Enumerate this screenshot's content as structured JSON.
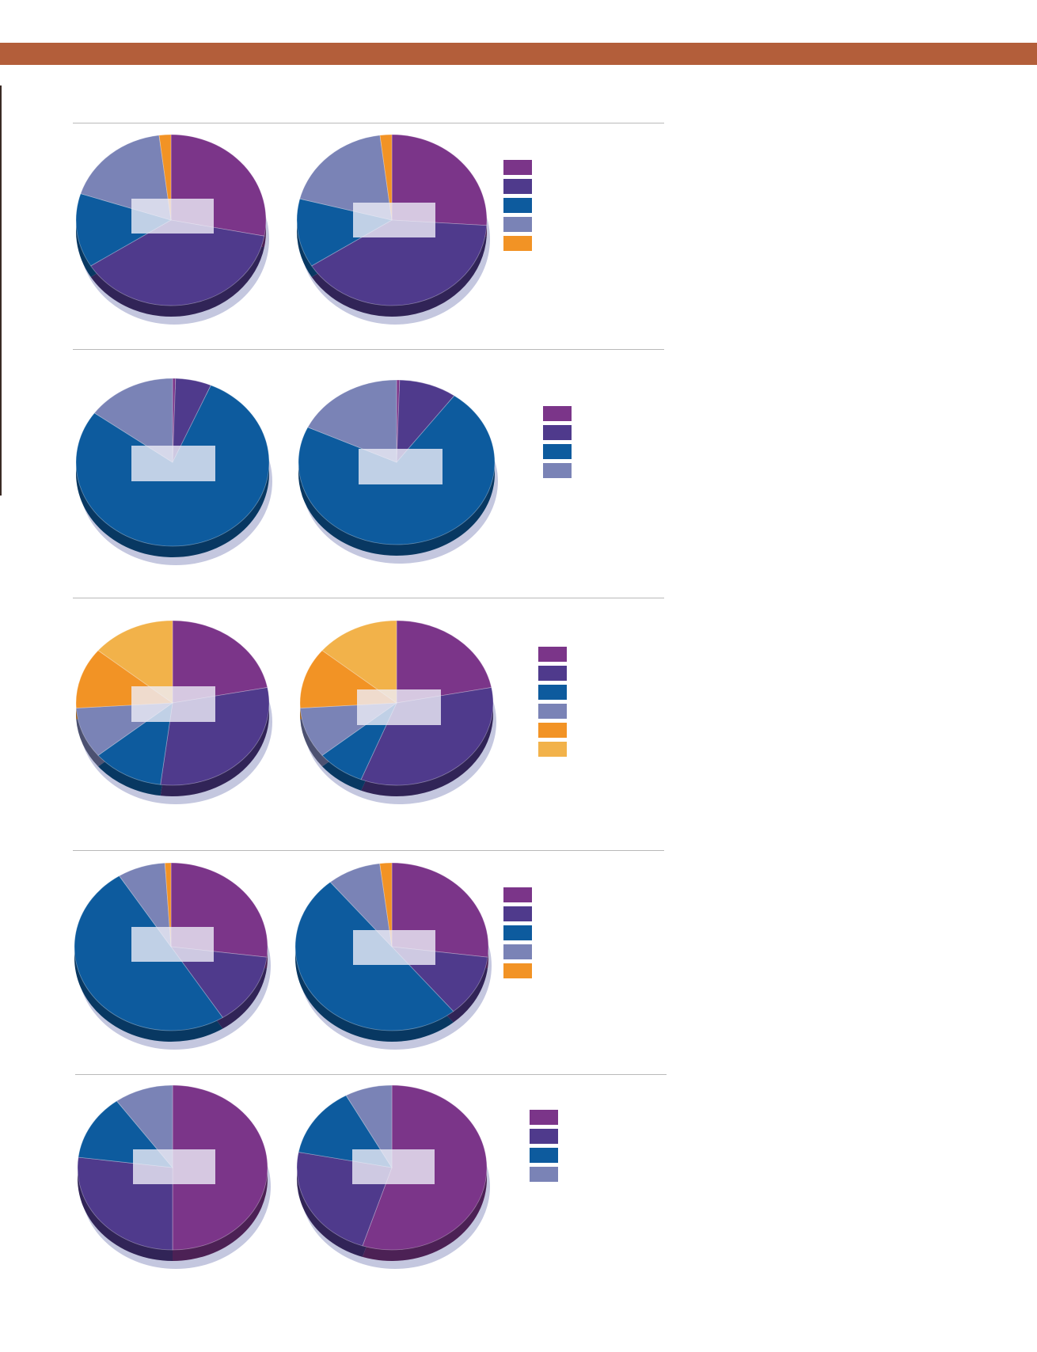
{
  "page": {
    "banner_color": "#b35e3a"
  },
  "palette": {
    "purple": "#7b3589",
    "indigo": "#4f3a8c",
    "blue": "#0d5b9e",
    "periwinkle": "#7a83b6",
    "orange": "#f29325",
    "gold": "#f2b24a"
  },
  "chart_data": [
    {
      "type": "pie",
      "group": 1,
      "title": "",
      "legend_colors": [
        "#7b3589",
        "#4f3a8c",
        "#0d5b9e",
        "#7a83b6",
        "#f29325"
      ],
      "pies": [
        {
          "series": [
            {
              "color": "#7b3589",
              "value": 28
            },
            {
              "color": "#4f3a8c",
              "value": 38
            },
            {
              "color": "#0d5b9e",
              "value": 14
            },
            {
              "color": "#7a83b6",
              "value": 18
            },
            {
              "color": "#f29325",
              "value": 2
            }
          ]
        },
        {
          "series": [
            {
              "color": "#7b3589",
              "value": 26
            },
            {
              "color": "#4f3a8c",
              "value": 40
            },
            {
              "color": "#0d5b9e",
              "value": 13
            },
            {
              "color": "#7a83b6",
              "value": 19
            },
            {
              "color": "#f29325",
              "value": 2
            }
          ]
        }
      ]
    },
    {
      "type": "pie",
      "group": 2,
      "title": "",
      "legend_colors": [
        "#7b3589",
        "#4f3a8c",
        "#0d5b9e",
        "#7a83b6"
      ],
      "pies": [
        {
          "series": [
            {
              "color": "#7b3589",
              "value": 0.5
            },
            {
              "color": "#4f3a8c",
              "value": 6
            },
            {
              "color": "#0d5b9e",
              "value": 78.5
            },
            {
              "color": "#7a83b6",
              "value": 15
            }
          ]
        },
        {
          "series": [
            {
              "color": "#7b3589",
              "value": 0.5
            },
            {
              "color": "#4f3a8c",
              "value": 9.5
            },
            {
              "color": "#0d5b9e",
              "value": 72
            },
            {
              "color": "#7a83b6",
              "value": 18
            }
          ]
        }
      ]
    },
    {
      "type": "pie",
      "group": 3,
      "title": "",
      "legend_colors": [
        "#7b3589",
        "#4f3a8c",
        "#0d5b9e",
        "#7a83b6",
        "#f29325",
        "#f2b24a"
      ],
      "pies": [
        {
          "series": [
            {
              "color": "#7b3589",
              "value": 22
            },
            {
              "color": "#4f3a8c",
              "value": 30
            },
            {
              "color": "#0d5b9e",
              "value": 12
            },
            {
              "color": "#7a83b6",
              "value": 10
            },
            {
              "color": "#f29325",
              "value": 12
            },
            {
              "color": "#f2b24a",
              "value": 14
            }
          ]
        },
        {
          "series": [
            {
              "color": "#7b3589",
              "value": 22
            },
            {
              "color": "#4f3a8c",
              "value": 34
            },
            {
              "color": "#0d5b9e",
              "value": 8
            },
            {
              "color": "#7a83b6",
              "value": 10
            },
            {
              "color": "#f29325",
              "value": 12
            },
            {
              "color": "#f2b24a",
              "value": 14
            }
          ]
        }
      ]
    },
    {
      "type": "pie",
      "group": 4,
      "title": "",
      "legend_colors": [
        "#7b3589",
        "#4f3a8c",
        "#0d5b9e",
        "#7a83b6",
        "#f29325"
      ],
      "pies": [
        {
          "series": [
            {
              "color": "#7b3589",
              "value": 27
            },
            {
              "color": "#4f3a8c",
              "value": 14
            },
            {
              "color": "#0d5b9e",
              "value": 50
            },
            {
              "color": "#7a83b6",
              "value": 8
            },
            {
              "color": "#f29325",
              "value": 1
            }
          ]
        },
        {
          "series": [
            {
              "color": "#7b3589",
              "value": 27
            },
            {
              "color": "#4f3a8c",
              "value": 12
            },
            {
              "color": "#0d5b9e",
              "value": 50
            },
            {
              "color": "#7a83b6",
              "value": 9
            },
            {
              "color": "#f29325",
              "value": 2
            }
          ]
        }
      ]
    },
    {
      "type": "pie",
      "group": 5,
      "title": "",
      "legend_colors": [
        "#7b3589",
        "#4f3a8c",
        "#0d5b9e",
        "#7a83b6"
      ],
      "pies": [
        {
          "series": [
            {
              "color": "#7b3589",
              "value": 50
            },
            {
              "color": "#4f3a8c",
              "value": 27
            },
            {
              "color": "#0d5b9e",
              "value": 13
            },
            {
              "color": "#7a83b6",
              "value": 10
            }
          ]
        },
        {
          "series": [
            {
              "color": "#7b3589",
              "value": 55
            },
            {
              "color": "#4f3a8c",
              "value": 23
            },
            {
              "color": "#0d5b9e",
              "value": 14
            },
            {
              "color": "#7a83b6",
              "value": 8
            }
          ]
        }
      ]
    }
  ]
}
